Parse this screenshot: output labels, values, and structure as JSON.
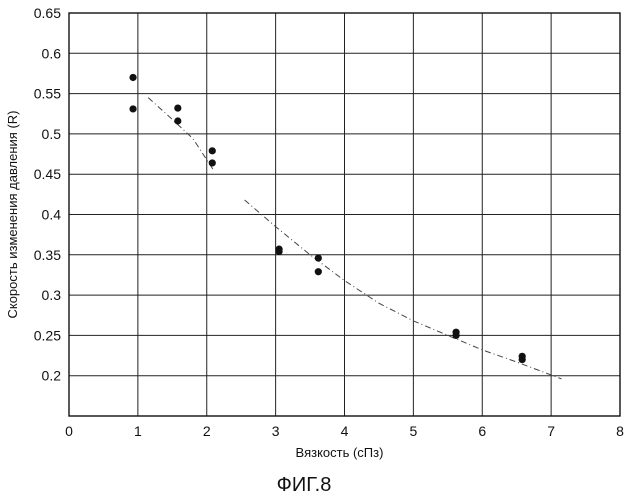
{
  "figure_caption": "ФИГ.8",
  "chart_data": {
    "type": "scatter",
    "xlabel": "Вязкость (сПз)",
    "ylabel": "Скорость изменения давления (R)",
    "xlim": [
      0,
      8
    ],
    "ylim": [
      0.15,
      0.65
    ],
    "x_ticks": [
      0,
      1,
      2,
      3,
      4,
      5,
      6,
      7,
      8
    ],
    "y_ticks": [
      0.2,
      0.25,
      0.3,
      0.35,
      0.4,
      0.45,
      0.5,
      0.55,
      0.6,
      0.65
    ],
    "grid": true,
    "series": [
      {
        "points": [
          {
            "x": 0.93,
            "y": 0.57
          },
          {
            "x": 0.93,
            "y": 0.531
          },
          {
            "x": 1.58,
            "y": 0.532
          },
          {
            "x": 1.58,
            "y": 0.516
          },
          {
            "x": 2.08,
            "y": 0.479
          },
          {
            "x": 2.08,
            "y": 0.464
          },
          {
            "x": 3.05,
            "y": 0.357
          },
          {
            "x": 3.05,
            "y": 0.354
          },
          {
            "x": 3.62,
            "y": 0.346
          },
          {
            "x": 3.62,
            "y": 0.329
          },
          {
            "x": 5.62,
            "y": 0.254
          },
          {
            "x": 5.62,
            "y": 0.25
          },
          {
            "x": 6.58,
            "y": 0.224
          },
          {
            "x": 6.58,
            "y": 0.22
          }
        ]
      }
    ],
    "trendlines": [
      {
        "style": "dash-dot",
        "points": [
          [
            1.15,
            0.545
          ],
          [
            1.5,
            0.518
          ],
          [
            1.8,
            0.494
          ],
          [
            2.1,
            0.455
          ]
        ]
      },
      {
        "style": "dash-dot",
        "points": [
          [
            2.55,
            0.418
          ],
          [
            3.0,
            0.385
          ],
          [
            3.5,
            0.35
          ],
          [
            4.0,
            0.318
          ],
          [
            4.5,
            0.29
          ],
          [
            5.0,
            0.268
          ],
          [
            5.5,
            0.25
          ],
          [
            6.0,
            0.232
          ],
          [
            6.5,
            0.217
          ],
          [
            7.15,
            0.196
          ]
        ]
      }
    ]
  }
}
